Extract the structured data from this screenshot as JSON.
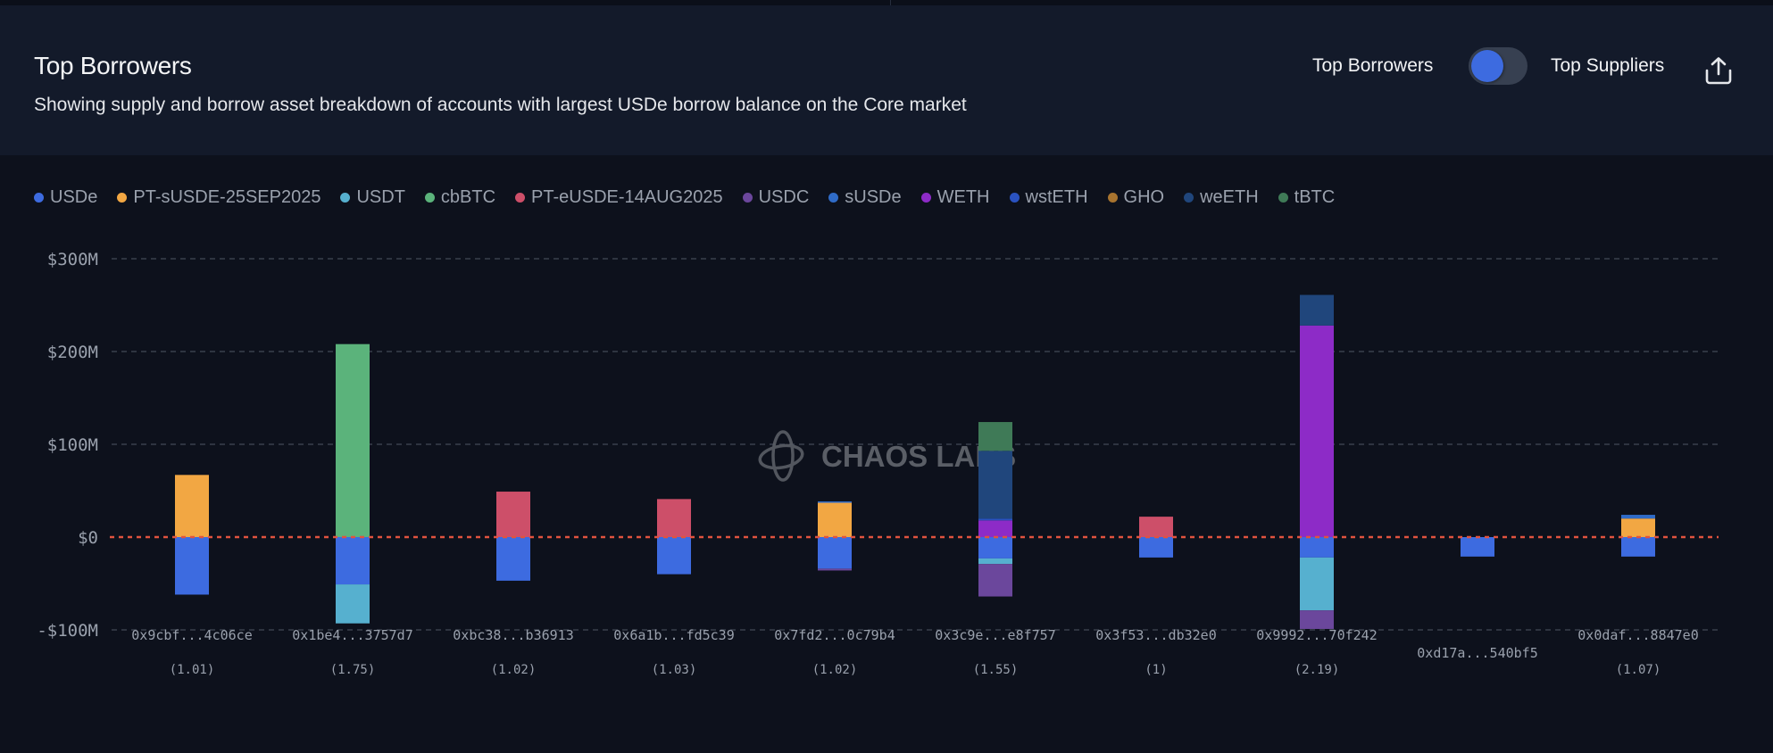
{
  "header": {
    "title": "Top Borrowers",
    "subtitle": "Showing supply and borrow asset breakdown of accounts with largest USDe borrow balance on the Core market",
    "toggle_left_label": "Top Borrowers",
    "toggle_right_label": "Top Suppliers",
    "toggle_state": "Top Borrowers",
    "share_icon": "share-upload-icon"
  },
  "watermark": "CHAOS LABS",
  "chart_data": {
    "type": "bar",
    "stacked": true,
    "legend_position": "top-left",
    "grid": true,
    "ylim": [
      -100,
      300
    ],
    "yticks": [
      {
        "value": 300,
        "label": "$300M"
      },
      {
        "value": 200,
        "label": "$200M"
      },
      {
        "value": 100,
        "label": "$100M"
      },
      {
        "value": 0,
        "label": "$0"
      },
      {
        "value": -100,
        "label": "-$100M"
      }
    ],
    "categories": [
      "0x9cbf...4c06ce",
      "0x1be4...3757d7",
      "0xbc38...b36913",
      "0x6a1b...fd5c39",
      "0x7fd2...0c79b4",
      "0x3c9e...e8f757",
      "0x3f53...db32e0",
      "0x9992...70f242",
      "0xd17a...540bf5",
      "0x0daf...8847e0"
    ],
    "category_sublabels": [
      "(1.01)",
      "(1.75)",
      "(1.02)",
      "(1.03)",
      "(1.02)",
      "(1.55)",
      "(1)",
      "(2.19)",
      "",
      "(1.07)"
    ],
    "series": [
      {
        "name": "USDe",
        "color": "#3d6be0",
        "values": [
          -62,
          -51,
          -47,
          -40,
          -34,
          -23,
          -22,
          -22,
          -21,
          -21
        ]
      },
      {
        "name": "PT-sUSDE-25SEP2025",
        "color": "#f2a743",
        "values": [
          67,
          0,
          0,
          0,
          37,
          0,
          0,
          0,
          0,
          20
        ]
      },
      {
        "name": "USDT",
        "color": "#56b0cf",
        "values": [
          0,
          -42,
          0,
          0,
          0,
          -6,
          0,
          -57,
          0,
          0
        ]
      },
      {
        "name": "cbBTC",
        "color": "#5bb37b",
        "values": [
          0,
          208,
          0,
          0,
          0,
          0,
          0,
          0,
          0,
          0
        ]
      },
      {
        "name": "PT-eUSDE-14AUG2025",
        "color": "#cd4f69",
        "values": [
          0,
          0,
          49,
          41,
          0,
          0,
          22,
          0,
          0,
          0
        ]
      },
      {
        "name": "USDC",
        "color": "#6b479c",
        "values": [
          0,
          0,
          0,
          0,
          -2,
          -35,
          0,
          -20,
          0,
          0
        ]
      },
      {
        "name": "sUSDe",
        "color": "#2f6bc7",
        "values": [
          0,
          0,
          0,
          0,
          1.5,
          0,
          0,
          0,
          0,
          4
        ]
      },
      {
        "name": "WETH",
        "color": "#8d2bc7",
        "values": [
          0,
          0,
          0,
          0,
          0,
          18,
          0,
          228,
          0,
          0
        ]
      },
      {
        "name": "wstETH",
        "color": "#2a52c0",
        "values": [
          0,
          0,
          0,
          0,
          0,
          2,
          0,
          0,
          0,
          0
        ]
      },
      {
        "name": "GHO",
        "color": "#a8742f",
        "values": [
          0,
          0,
          0,
          0,
          0,
          0,
          0,
          0,
          0,
          0
        ]
      },
      {
        "name": "weETH",
        "color": "#20467c",
        "values": [
          0,
          0,
          0,
          0,
          0,
          73,
          0,
          33,
          0,
          0
        ]
      },
      {
        "name": "tBTC",
        "color": "#3f7a57",
        "values": [
          0,
          0,
          0,
          0,
          0,
          31,
          0,
          0,
          0,
          0
        ]
      }
    ],
    "zero_line_color": "#e0533f"
  }
}
